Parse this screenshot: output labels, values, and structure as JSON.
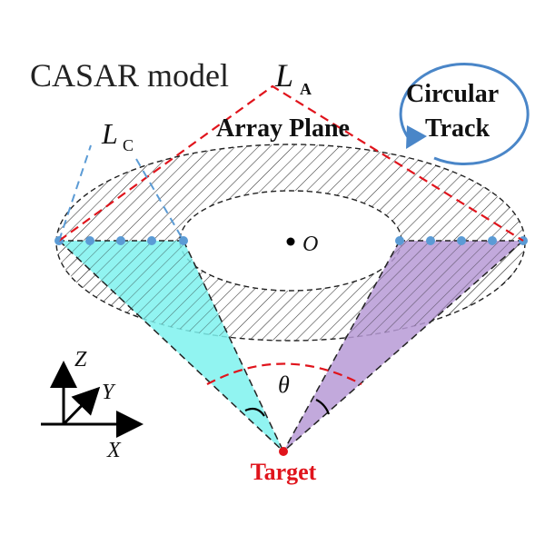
{
  "title": "CASAR model",
  "labels": {
    "la_main": "L",
    "la_sub": "A",
    "lc_main": "L",
    "lc_sub": "C",
    "array_plane": "Array Plane",
    "circular": "Circular",
    "track": "Track",
    "origin": "O",
    "theta": "θ",
    "target": "Target"
  },
  "axes": {
    "z": "Z",
    "y": "Y",
    "x": "X"
  },
  "colors": {
    "red": "#e0141c",
    "blue_dash": "#5b9bd5",
    "cyan_fill": "#7ef2ee",
    "purple_fill": "#b79ad6",
    "dot_blue": "#5b9bd5",
    "track_blue": "#4a86c8"
  },
  "icons": {
    "track_arrow": "circular-arrow-icon",
    "axes": "xyz-axes-icon"
  }
}
